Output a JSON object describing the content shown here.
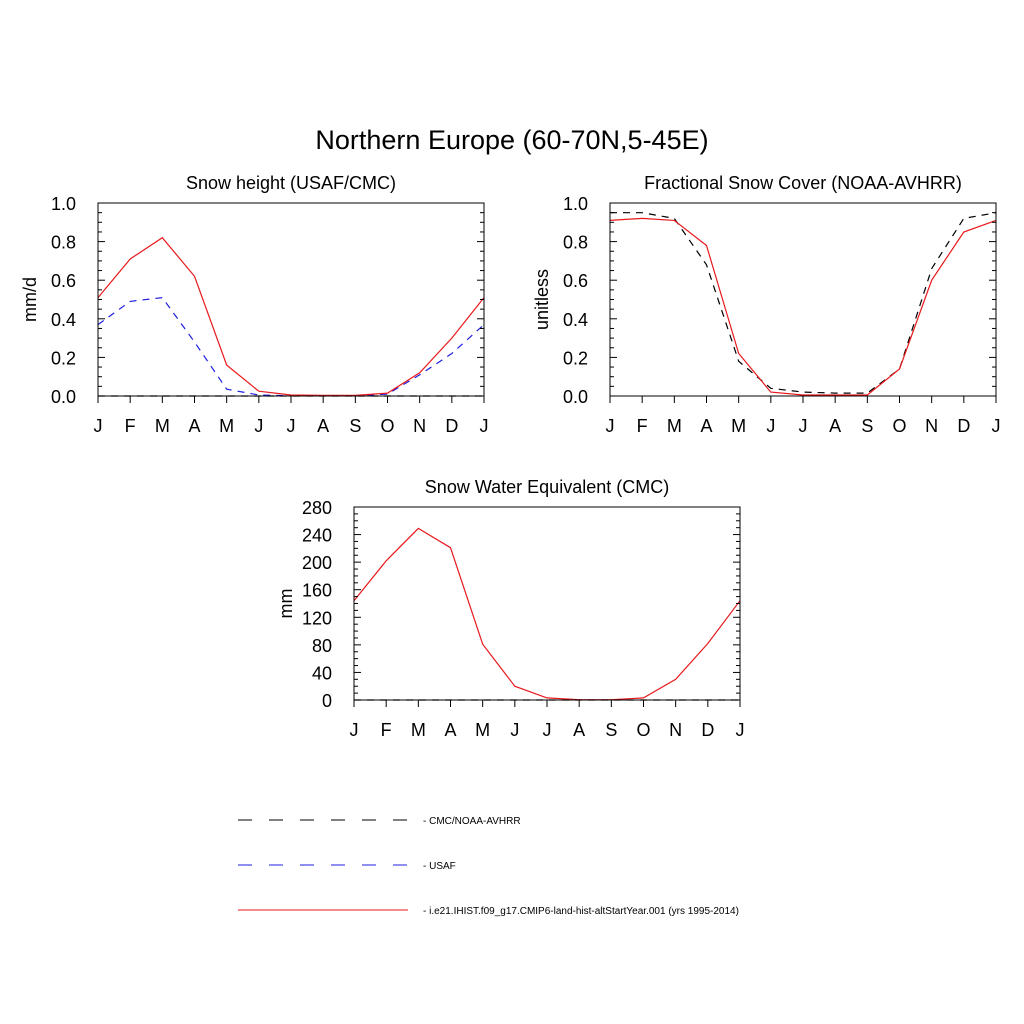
{
  "figure_title": "Northern Europe (60-70N,5-45E)",
  "month_labels": [
    "J",
    "F",
    "M",
    "A",
    "M",
    "J",
    "J",
    "A",
    "S",
    "O",
    "N",
    "D",
    "J"
  ],
  "colors": {
    "model": "#e8191c",
    "usaf": "#1f1fe0",
    "cmc": "#000000"
  },
  "legend": {
    "items": [
      {
        "label": "CMC/NOAA-AVHRR",
        "color": "#000000",
        "dash": "dashed"
      },
      {
        "label": "USAF",
        "color": "#1f1fe0",
        "dash": "dashed"
      },
      {
        "label": "i.e21.IHIST.f09_g17.CMIP6-land-hist-altStartYear.001 (yrs 1995-2014)",
        "color": "#e8191c",
        "dash": "solid"
      }
    ]
  },
  "chart_data": [
    {
      "type": "line",
      "title": "Snow height (USAF/CMC)",
      "ylabel": "mm/d",
      "xlabel": "",
      "ylim": [
        0,
        1.0
      ],
      "yticks": [
        0.0,
        0.2,
        0.4,
        0.6,
        0.8,
        1.0
      ],
      "ytick_labels": [
        "0.0",
        "0.2",
        "0.4",
        "0.6",
        "0.8",
        "1.0"
      ],
      "x": [
        "J",
        "F",
        "M",
        "A",
        "M",
        "J",
        "J",
        "A",
        "S",
        "O",
        "N",
        "D",
        "J"
      ],
      "series": [
        {
          "name": "i.e21.IHIST.f09_g17.CMIP6-land-hist-altStartYear.001 (yrs 1995-2014)",
          "color": "#e8191c",
          "dash": "solid",
          "values": [
            0.51,
            0.71,
            0.82,
            0.62,
            0.16,
            0.025,
            0.005,
            0.003,
            0.003,
            0.015,
            0.12,
            0.3,
            0.51
          ]
        },
        {
          "name": "USAF",
          "color": "#1f1fe0",
          "dash": "dashed",
          "values": [
            0.37,
            0.49,
            0.51,
            0.28,
            0.035,
            0.005,
            0.001,
            0.001,
            0.001,
            0.01,
            0.11,
            0.22,
            0.37
          ]
        },
        {
          "name": "CMC/NOAA-AVHRR",
          "color": "#000000",
          "dash": "dashed",
          "values": [
            0,
            0,
            0,
            0,
            0,
            0,
            0,
            0,
            0,
            0,
            0,
            0,
            0
          ]
        }
      ]
    },
    {
      "type": "line",
      "title": "Fractional Snow Cover (NOAA-AVHRR)",
      "ylabel": "unitless",
      "xlabel": "",
      "ylim": [
        0,
        1.0
      ],
      "yticks": [
        0.0,
        0.2,
        0.4,
        0.6,
        0.8,
        1.0
      ],
      "ytick_labels": [
        "0.0",
        "0.2",
        "0.4",
        "0.6",
        "0.8",
        "1.0"
      ],
      "x": [
        "J",
        "F",
        "M",
        "A",
        "M",
        "J",
        "J",
        "A",
        "S",
        "O",
        "N",
        "D",
        "J"
      ],
      "series": [
        {
          "name": "i.e21.IHIST.f09_g17.CMIP6-land-hist-altStartYear.001 (yrs 1995-2014)",
          "color": "#e8191c",
          "dash": "solid",
          "values": [
            0.91,
            0.92,
            0.91,
            0.78,
            0.22,
            0.02,
            0.005,
            0.005,
            0.005,
            0.14,
            0.6,
            0.85,
            0.91
          ]
        },
        {
          "name": "CMC/NOAA-AVHRR",
          "color": "#000000",
          "dash": "dashed",
          "values": [
            0.95,
            0.95,
            0.92,
            0.68,
            0.18,
            0.04,
            0.02,
            0.015,
            0.015,
            0.14,
            0.66,
            0.92,
            0.95
          ]
        }
      ]
    },
    {
      "type": "line",
      "title": "Snow Water Equivalent (CMC)",
      "ylabel": "mm",
      "xlabel": "",
      "ylim": [
        0,
        280
      ],
      "yticks": [
        0,
        40,
        80,
        120,
        160,
        200,
        240,
        280
      ],
      "ytick_labels": [
        "0",
        "40",
        "80",
        "120",
        "160",
        "200",
        "240",
        "280"
      ],
      "x": [
        "J",
        "F",
        "M",
        "A",
        "M",
        "J",
        "J",
        "A",
        "S",
        "O",
        "N",
        "D",
        "J"
      ],
      "series": [
        {
          "name": "i.e21.IHIST.f09_g17.CMIP6-land-hist-altStartYear.001 (yrs 1995-2014)",
          "color": "#e8191c",
          "dash": "solid",
          "values": [
            144,
            202,
            249,
            221,
            81,
            20,
            3,
            0.5,
            0.5,
            3,
            30,
            82,
            144
          ]
        },
        {
          "name": "CMC/NOAA-AVHRR",
          "color": "#000000",
          "dash": "dashed",
          "values": [
            0,
            0,
            0,
            0,
            0,
            0,
            0,
            0,
            0,
            0,
            0,
            0,
            0
          ]
        }
      ]
    }
  ]
}
